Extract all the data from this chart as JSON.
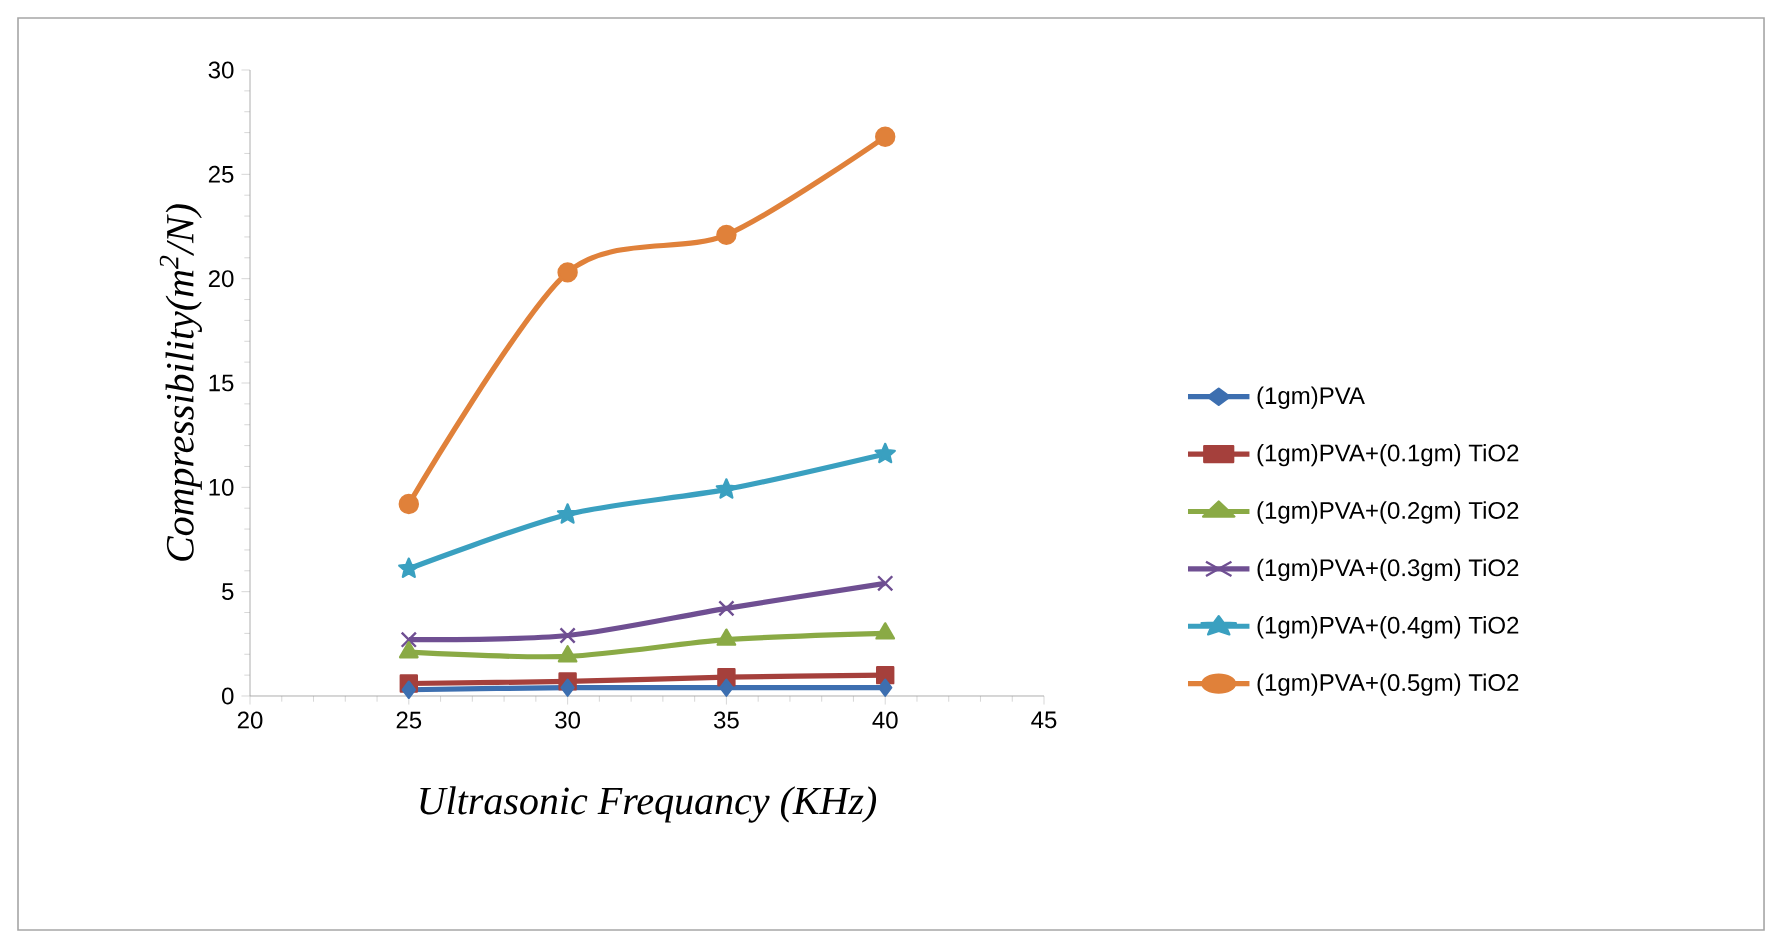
{
  "chart_data": {
    "type": "line",
    "xlabel": "Ultrasonic Frequancy (KHz)",
    "ylabel": "Compressibility(m$^{2}$/N)",
    "x": [
      25,
      30,
      35,
      40
    ],
    "xlim": [
      20,
      45
    ],
    "xticks": [
      20,
      25,
      30,
      35,
      40,
      45
    ],
    "ylim": [
      0,
      30
    ],
    "yticks": [
      0,
      5,
      10,
      15,
      20,
      25,
      30
    ],
    "legend": "right",
    "line_style": "solid",
    "series": [
      {
        "name": "(1gm)PVA",
        "color": "#3d6fb0",
        "marker": "diamond",
        "values": [
          0.3,
          0.4,
          0.4,
          0.4
        ]
      },
      {
        "name": "(1gm)PVA+(0.1gm) TiO2",
        "color": "#a5403c",
        "marker": "square",
        "values": [
          0.6,
          0.7,
          0.9,
          1.0
        ]
      },
      {
        "name": "(1gm)PVA+(0.2gm) TiO2",
        "color": "#8aaa45",
        "marker": "triangle",
        "values": [
          2.1,
          1.9,
          2.7,
          3.0
        ]
      },
      {
        "name": "(1gm)PVA+(0.3gm) TiO2",
        "color": "#6f4f92",
        "marker": "cross",
        "values": [
          2.7,
          2.9,
          4.2,
          5.4
        ]
      },
      {
        "name": "(1gm)PVA+(0.4gm) TiO2",
        "color": "#3aa0c0",
        "marker": "star",
        "values": [
          6.1,
          8.7,
          9.9,
          11.6
        ]
      },
      {
        "name": "(1gm)PVA+(0.5gm) TiO2",
        "color": "#e0813a",
        "marker": "circle",
        "values": [
          9.2,
          20.3,
          22.1,
          26.8
        ]
      }
    ]
  }
}
